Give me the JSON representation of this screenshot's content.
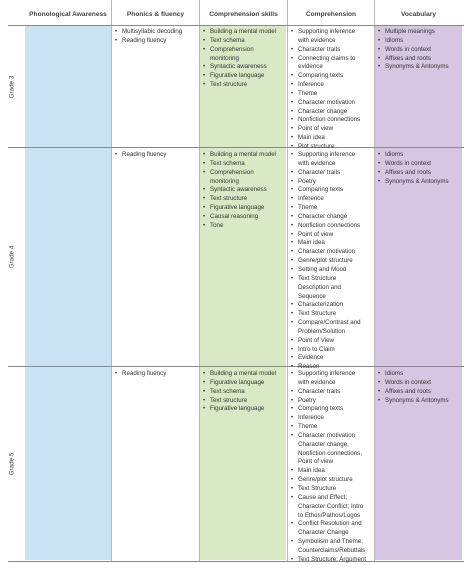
{
  "colors": {
    "phonological": "#c9e3f4",
    "comprehension_skills": "#d9e9c6",
    "vocabulary": "#d6c6e2",
    "rule": "#8a8a8a"
  },
  "headers": {
    "phonological": "Phonological Awareness",
    "phonics": "Phonics & fluency",
    "skills": "Comprehension skills",
    "comprehension": "Comprehension",
    "vocabulary": "Vocabulary"
  },
  "grades": {
    "g3": "Grade 3",
    "g4": "Grade 4",
    "g5": "Grade 5"
  },
  "rows": {
    "g3": {
      "phonics": [
        "Multisyllabic decoding",
        "Reading fluency"
      ],
      "skills": [
        "Building a mental model",
        "Text schema",
        "Comprehension\nmonitoring",
        "Syntactic awareness",
        "Figurative language",
        "Text structure"
      ],
      "comprehension": [
        "Supporting inference\nwith evidence",
        "Character traits",
        "Connecting claims to\nevidence",
        "Comparing texts",
        "Inference",
        "Theme",
        "Character motivation",
        "Character change",
        "Nonfiction connections",
        "Point of view",
        "Main idea",
        "Plot structure"
      ],
      "vocabulary": [
        "Multiple meanings",
        "Idioms",
        "Words in context",
        "Affixes and roots",
        "Synonyms & Antonyms"
      ]
    },
    "g4": {
      "phonics": [
        "Reading fluency"
      ],
      "skills": [
        "Building a mental model",
        "Text schema",
        "Comprehension\nmonitoring",
        "Syntactic awareness",
        "Text structure",
        "Figurative language",
        "Causal reasoning",
        "Tone"
      ],
      "comprehension": [
        "Supporting inference\nwith evidence",
        "Character traits",
        "Poetry",
        "Comparing texts",
        "Inference",
        "Theme",
        "Character change",
        "Nonfiction connections",
        "Point of view",
        "Main idea",
        "Character motivation",
        "Genre/plot structure",
        "Setting and Mood",
        "Text Structure\nDescription and\nSequence",
        "Characterization",
        "Text Structure",
        "Compare/Contrast and\nProblem/Solution",
        "Point of View",
        "Intro to Claim",
        "Evidence",
        "Reason"
      ],
      "vocabulary": [
        "Idioms",
        "Words in context",
        "Affixes and roots",
        "Synonyms & Antonyms"
      ]
    },
    "g5": {
      "phonics": [
        "Reading fluency"
      ],
      "skills": [
        "Building a mental model",
        "Figurative language",
        "Text schema",
        "Text structure",
        "Figurative language"
      ],
      "comprehension": [
        "Supporting inference\nwith evidence",
        "Character traits",
        "Poetry",
        "Comparing texts",
        "Inference",
        "Theme",
        "Character motivation\nCharacter change,\nNonfiction connections,\nPoint of view",
        "Main idea",
        "Genre/plot structure",
        "Text Structure",
        "Cause and Effect;\nCharacter Conflict; Intro\nto Ethos/Pathos/Logos",
        "Conflict Resolution and\nCharacter Change",
        "Symbolism and Theme;\nCounterclaims/Rebuttals",
        "Text Structure: Argument"
      ],
      "vocabulary": [
        "Idioms",
        "Words in context",
        "Affixes and roots",
        "Synonyms & Antonyms"
      ]
    }
  }
}
